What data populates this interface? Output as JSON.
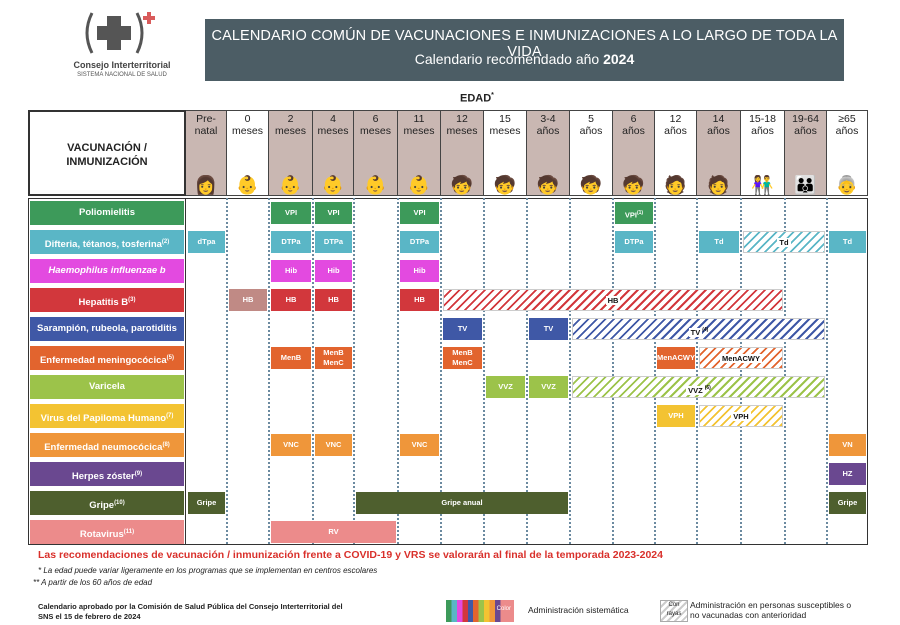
{
  "logo": {
    "name": "Consejo Interterritorial",
    "sub": "SISTEMA NACIONAL DE SALUD"
  },
  "title": {
    "line1": "CALENDARIO COMÚN DE VACUNACIONES E INMUNIZACIONES A LO LARGO DE TODA LA VIDA",
    "line2_prefix": "Calendario recomendado año ",
    "line2_year": "2024"
  },
  "edad_label": "EDAD",
  "edad_mark": "*",
  "header_left": {
    "line1": "VACUNACIÓN /",
    "line2": "INMUNIZACIÓN"
  },
  "columns": [
    {
      "l1": "Pre-",
      "l2": "natal"
    },
    {
      "l1": "0",
      "l2": "meses"
    },
    {
      "l1": "2",
      "l2": "meses"
    },
    {
      "l1": "4",
      "l2": "meses"
    },
    {
      "l1": "6",
      "l2": "meses"
    },
    {
      "l1": "11",
      "l2": "meses"
    },
    {
      "l1": "12",
      "l2": "meses"
    },
    {
      "l1": "15",
      "l2": "meses"
    },
    {
      "l1": "3-4",
      "l2": "años"
    },
    {
      "l1": "5",
      "l2": "años"
    },
    {
      "l1": "6",
      "l2": "años"
    },
    {
      "l1": "12",
      "l2": "años"
    },
    {
      "l1": "14",
      "l2": "años"
    },
    {
      "l1": "15-18",
      "l2": "años"
    },
    {
      "l1": "19-64",
      "l2": "años"
    },
    {
      "l1": "≥65",
      "l2": "años"
    }
  ],
  "rows": [
    {
      "label": "Poliomielitis",
      "sup": "",
      "color": "#3d9a5a"
    },
    {
      "label": "Difteria, tétanos, tosferina",
      "sup": "(2)",
      "color": "#5ab6c6"
    },
    {
      "label": "Haemophilus influenzae b",
      "sup": "",
      "color": "#e34ae0"
    },
    {
      "label": "Hepatitis B",
      "sup": "(3)",
      "color": "#d2373c"
    },
    {
      "label": "Sarampión, rubeola, parotiditis",
      "sup": "",
      "color": "#3f58a6"
    },
    {
      "label": "Enfermedad meningocócica",
      "sup": "(5)",
      "color": "#e2642e"
    },
    {
      "label": "Varicela",
      "sup": "",
      "color": "#9cc34a"
    },
    {
      "label": "Virus del Papiloma Humano",
      "sup": "(7)",
      "color": "#f3c332"
    },
    {
      "label": "Enfermedad neumocócica",
      "sup": "(8)",
      "color": "#ef963a"
    },
    {
      "label": "Herpes zóster",
      "sup": "(9)",
      "color": "#6a4890"
    },
    {
      "label": "Gripe",
      "sup": "(10)",
      "color": "#4e5f2e"
    },
    {
      "label": "Rotavirus",
      "sup": "(11)",
      "color": "#ec8b8b"
    }
  ],
  "cells": {
    "polio": [
      "VPI",
      "VPI",
      "VPI",
      "VPI"
    ],
    "polio_sup": "(1)",
    "dtp": [
      "dTpa",
      "DTPa",
      "DTPa",
      "DTPa",
      "DTPa",
      "Td",
      "Td",
      "Td"
    ],
    "hib": [
      "Hib",
      "Hib",
      "Hib"
    ],
    "hb": [
      "HB",
      "HB",
      "HB",
      "HB",
      "HB"
    ],
    "tv": [
      "TV",
      "TV",
      "TV"
    ],
    "tv_sup": "(4)",
    "men": [
      "MenB",
      "MenB",
      "MenC",
      "MenB",
      "MenC",
      "MenACWY",
      "MenACWY"
    ],
    "vvz": [
      "VVZ",
      "VVZ",
      "VVZ"
    ],
    "vvz_sup": "(6)",
    "vph": [
      "VPH",
      "VPH"
    ],
    "vnc": [
      "VNC",
      "VNC",
      "VNC",
      "VN"
    ],
    "hz": "HZ",
    "gripe": [
      "Gripe",
      "Gripe anual",
      "Gripe anual"
    ],
    "gripe_mark": "**",
    "rv": "RV"
  },
  "notes": {
    "red": "Las recomendaciones de vacunación / inmunización frente a COVID-19 y VRS se valorarán al final de la temporada 2023-2024",
    "n1": "* La edad puede variar ligeramente en los programas que se implementan en centros escolares",
    "n2": "** A partir de los 60 años de edad"
  },
  "footer": {
    "approved_l1": "Calendario aprobado por la Comisión de Salud Pública del Consejo Interterritorial del",
    "approved_l2": "SNS el 15 de febrero de 2024",
    "legend_color": "Color",
    "legend_color_label": "Administración sistemática",
    "legend_hatch": "Con rayas",
    "legend_hatch_l1": "Administración en personas susceptibles o",
    "legend_hatch_l2": "no vacunadas con anterioridad"
  }
}
